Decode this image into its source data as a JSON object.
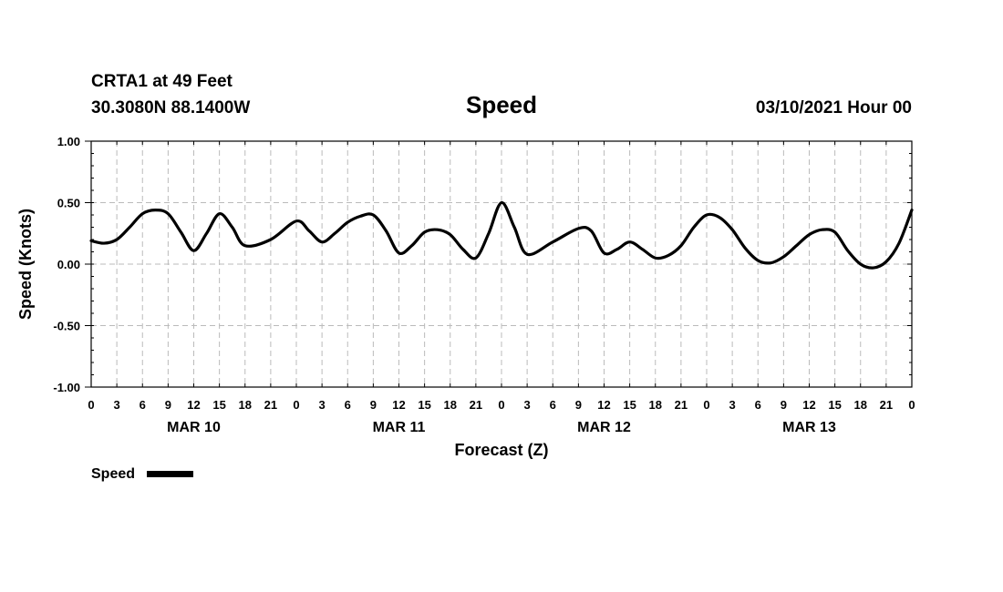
{
  "header": {
    "station": "CRTA1 at 49 Feet",
    "location": "30.3080N 88.1400W",
    "title": "Speed",
    "timestamp": "03/10/2021 Hour 00"
  },
  "chart_data": {
    "type": "line",
    "xlabel": "Forecast (Z)",
    "ylabel": "Speed (Knots)",
    "ylim": [
      -1.0,
      1.0
    ],
    "y_ticks": [
      "1.00",
      "0.50",
      "0.00",
      "-0.50",
      "-1.00"
    ],
    "x_range_hours": [
      0,
      96
    ],
    "x_tick_labels": [
      "0",
      "3",
      "6",
      "9",
      "12",
      "15",
      "18",
      "21",
      "0",
      "3",
      "6",
      "9",
      "12",
      "15",
      "18",
      "21",
      "0",
      "3",
      "6",
      "9",
      "12",
      "15",
      "18",
      "21",
      "0",
      "3",
      "6",
      "9",
      "12",
      "15",
      "18",
      "21",
      "0"
    ],
    "day_labels": [
      "MAR 10",
      "MAR 11",
      "MAR 12",
      "MAR 13"
    ],
    "grid": true,
    "legend_position": "bottom-left",
    "series": [
      {
        "name": "Speed",
        "color": "#000000",
        "x": [
          0,
          1.5,
          3,
          4.5,
          6,
          7.5,
          9,
          10.5,
          12,
          13.5,
          15,
          16.5,
          18,
          21,
          24,
          25.5,
          27,
          28.5,
          30,
          31.5,
          33,
          34.5,
          36,
          37.5,
          39,
          40.5,
          42,
          43.5,
          45,
          46.5,
          48,
          49.5,
          51,
          54,
          57,
          58.5,
          60,
          61.5,
          63,
          64.5,
          66,
          67.5,
          69,
          70.5,
          72,
          73.5,
          75,
          76.5,
          78,
          79.5,
          81,
          82.5,
          84,
          85.5,
          87,
          88.5,
          90,
          91.5,
          93,
          94.5,
          96
        ],
        "y": [
          0.19,
          0.17,
          0.2,
          0.3,
          0.41,
          0.44,
          0.41,
          0.26,
          0.11,
          0.25,
          0.41,
          0.3,
          0.15,
          0.2,
          0.35,
          0.27,
          0.18,
          0.25,
          0.34,
          0.39,
          0.4,
          0.27,
          0.09,
          0.15,
          0.26,
          0.28,
          0.24,
          0.12,
          0.05,
          0.25,
          0.5,
          0.3,
          0.08,
          0.18,
          0.29,
          0.27,
          0.09,
          0.12,
          0.18,
          0.12,
          0.05,
          0.07,
          0.15,
          0.3,
          0.4,
          0.38,
          0.28,
          0.13,
          0.03,
          0.01,
          0.06,
          0.15,
          0.24,
          0.28,
          0.26,
          0.11,
          0.0,
          -0.03,
          0.02,
          0.17,
          0.44
        ]
      }
    ]
  }
}
